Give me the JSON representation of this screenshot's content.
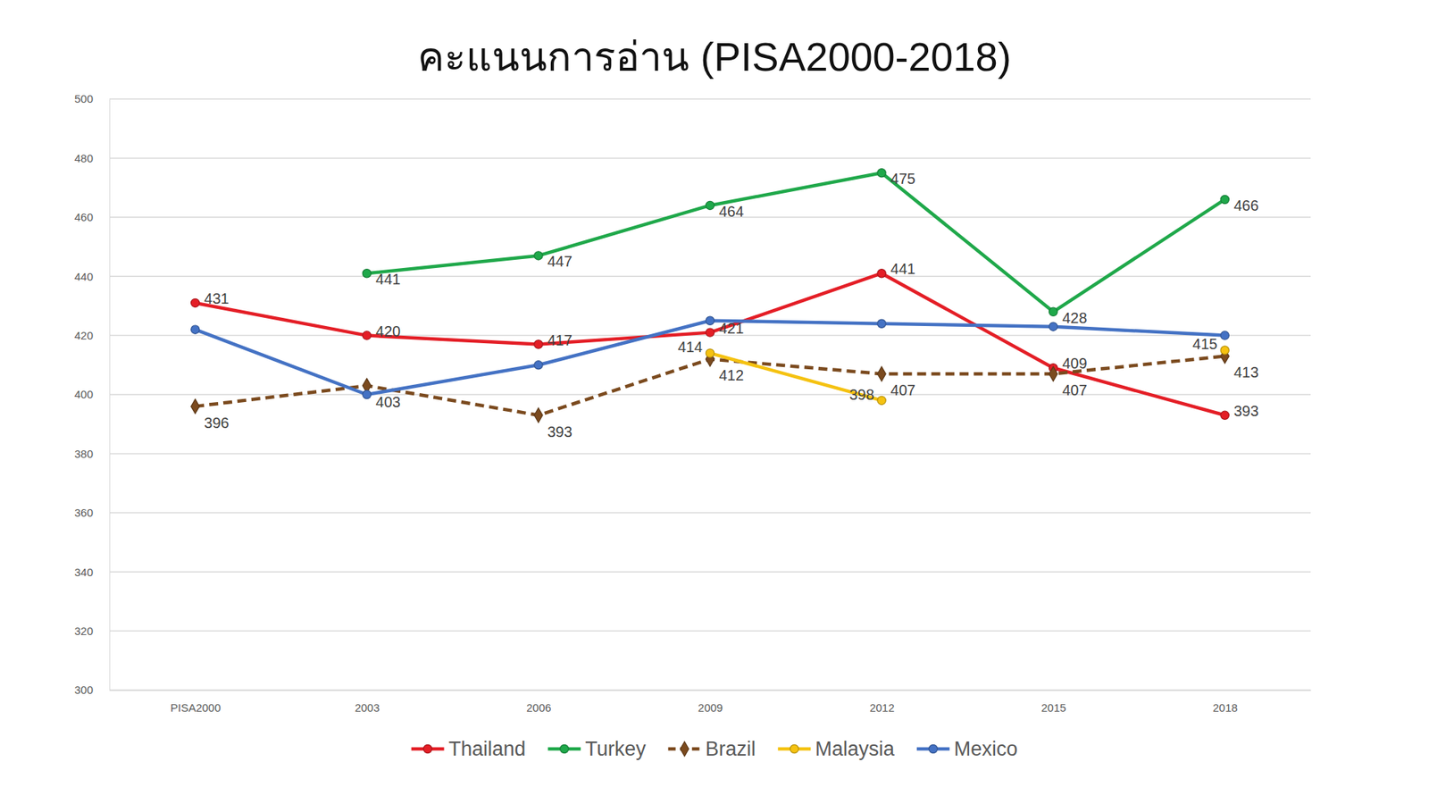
{
  "chart_data": {
    "type": "line",
    "title": "คะแนนการอ่าน (PISA2000-2018)",
    "categories": [
      "PISA2000",
      "2003",
      "2006",
      "2009",
      "2012",
      "2015",
      "2018"
    ],
    "series": [
      {
        "name": "Thailand",
        "color": "#e41e26",
        "marker": "circle",
        "line_style": "solid",
        "data_labels": true,
        "values": [
          431,
          420,
          417,
          421,
          441,
          409,
          393
        ]
      },
      {
        "name": "Turkey",
        "color": "#1fa84a",
        "marker": "circle",
        "line_style": "solid",
        "data_labels": true,
        "values": [
          null,
          441,
          447,
          464,
          475,
          428,
          466
        ]
      },
      {
        "name": "Brazil",
        "color": "#7b4a1e",
        "marker": "diamond",
        "line_style": "dashed",
        "data_labels": true,
        "values": [
          396,
          403,
          393,
          412,
          407,
          407,
          413
        ]
      },
      {
        "name": "Malaysia",
        "color": "#f5c211",
        "marker": "circle",
        "line_style": "solid",
        "data_labels": true,
        "values": [
          null,
          null,
          null,
          414,
          398,
          null,
          415
        ]
      },
      {
        "name": "Mexico",
        "color": "#4472c4",
        "marker": "circle",
        "line_style": "solid",
        "data_labels": false,
        "values": [
          422,
          400,
          410,
          425,
          424,
          423,
          420
        ]
      }
    ],
    "ylim": [
      300,
      500
    ],
    "yticks": [
      300,
      320,
      340,
      360,
      380,
      400,
      420,
      440,
      460,
      480,
      500
    ],
    "grid": true,
    "legend": "bottom"
  }
}
